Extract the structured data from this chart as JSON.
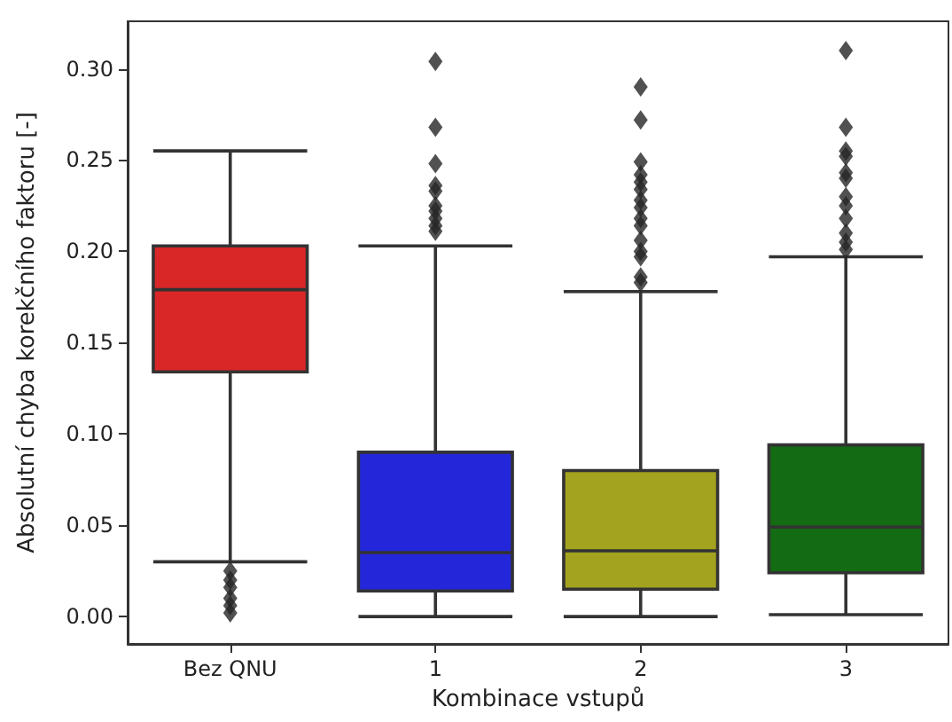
{
  "chart_data": {
    "type": "box",
    "xlabel": "Kombinace vstupů",
    "ylabel": "Absolutní chyba korekčního faktoru [-]",
    "categories": [
      "Bez QNU",
      "1",
      "2",
      "3"
    ],
    "colors": [
      "#d92728",
      "#2427d9",
      "#a3a31f",
      "#136b13"
    ],
    "boxes": [
      {
        "low": 0.03,
        "q1": 0.134,
        "median": 0.179,
        "q3": 0.203,
        "high": 0.255,
        "outliers": [
          0.025,
          0.02,
          0.016,
          0.01,
          0.006,
          0.002
        ]
      },
      {
        "low": 0.0,
        "q1": 0.014,
        "median": 0.035,
        "q3": 0.09,
        "high": 0.203,
        "outliers": [
          0.304,
          0.268,
          0.248,
          0.236,
          0.233,
          0.225,
          0.222,
          0.218,
          0.214,
          0.211
        ]
      },
      {
        "low": 0.0,
        "q1": 0.015,
        "median": 0.036,
        "q3": 0.08,
        "high": 0.178,
        "outliers": [
          0.29,
          0.272,
          0.249,
          0.242,
          0.238,
          0.234,
          0.228,
          0.224,
          0.218,
          0.214,
          0.206,
          0.2,
          0.197,
          0.186,
          0.183
        ]
      },
      {
        "low": 0.001,
        "q1": 0.024,
        "median": 0.049,
        "q3": 0.094,
        "high": 0.197,
        "outliers": [
          0.31,
          0.268,
          0.255,
          0.252,
          0.243,
          0.24,
          0.23,
          0.225,
          0.218,
          0.21,
          0.205,
          0.201
        ]
      }
    ],
    "ylim": [
      -0.015,
      0.326
    ],
    "yticks": [
      {
        "value": 0,
        "label": "0.00"
      },
      {
        "value": 0.05,
        "label": "0.05"
      },
      {
        "value": 0.1,
        "label": "0.10"
      },
      {
        "value": 0.15,
        "label": "0.15"
      },
      {
        "value": 0.2,
        "label": "0.20"
      },
      {
        "value": 0.25,
        "label": "0.25"
      },
      {
        "value": 0.3,
        "label": "0.30"
      }
    ],
    "marker": "diamond",
    "grid": false
  }
}
